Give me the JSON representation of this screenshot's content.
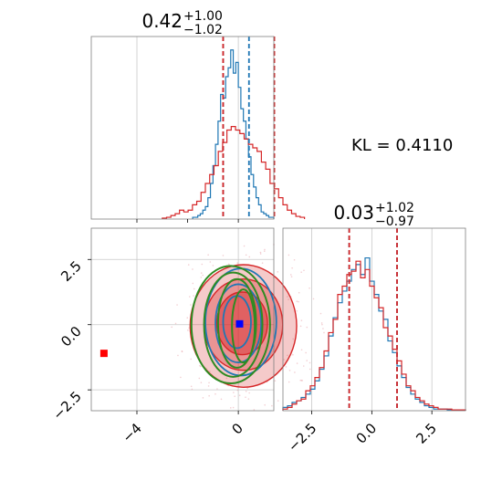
{
  "chart_data": {
    "type": "corner",
    "annotation": {
      "text": "KL = 0.4110"
    },
    "colors": {
      "blue": "#1f77b4",
      "red": "#d62728",
      "green": "#2e8b22",
      "marker_blue": "#0000ff",
      "marker_red": "#ff0000"
    },
    "panels": {
      "hist_x": {
        "type": "step-histogram",
        "title_main": "0.42",
        "title_sup": "+1.00",
        "title_sub": "−1.02",
        "xlim": [
          -5.8,
          1.4
        ],
        "ylim": [
          0,
          1.0
        ],
        "grid_x": [
          -4,
          0
        ],
        "series": [
          {
            "name": "",
            "color": "blue",
            "x0": -1.8,
            "bin_width": 0.1,
            "values": [
              0.01,
              0.01,
              0.02,
              0.03,
              0.05,
              0.07,
              0.12,
              0.2,
              0.3,
              0.42,
              0.55,
              0.7,
              0.68,
              0.8,
              0.85,
              0.95,
              0.82,
              0.88,
              0.74,
              0.62,
              0.55,
              0.45,
              0.35,
              0.25,
              0.18,
              0.12,
              0.08,
              0.04,
              0.03,
              0.02,
              0.01,
              0.01
            ]
          },
          {
            "name": "",
            "color": "red",
            "x0": -3.0,
            "bin_width": 0.17,
            "values": [
              0.005,
              0.01,
              0.02,
              0.03,
              0.05,
              0.04,
              0.05,
              0.08,
              0.1,
              0.15,
              0.2,
              0.25,
              0.3,
              0.38,
              0.43,
              0.5,
              0.52,
              0.5,
              0.48,
              0.45,
              0.42,
              0.4,
              0.38,
              0.32,
              0.28,
              0.2,
              0.17,
              0.12,
              0.08,
              0.05,
              0.03,
              0.015,
              0.01
            ]
          }
        ],
        "vlines": [
          {
            "x": -0.6,
            "color": "blue"
          },
          {
            "x": 0.42,
            "color": "blue"
          },
          {
            "x": -0.6,
            "color": "red"
          },
          {
            "x": 1.42,
            "color": "red"
          }
        ]
      },
      "hist_y": {
        "type": "step-histogram",
        "title_main": "0.03",
        "title_sup": "+1.02",
        "title_sub": "−0.97",
        "xlim": [
          -3.7,
          3.9
        ],
        "ylim": [
          0,
          1.0
        ],
        "xticks": [
          -2.5,
          0.0,
          2.5
        ],
        "xtick_labels": [
          "−2.5",
          "0.0",
          "2.5"
        ],
        "series": [
          {
            "name": "",
            "color": "blue",
            "x0": -3.7,
            "bin_width": 0.19,
            "values": [
              0.02,
              0.03,
              0.05,
              0.06,
              0.08,
              0.1,
              0.13,
              0.18,
              0.25,
              0.33,
              0.45,
              0.56,
              0.65,
              0.72,
              0.78,
              0.85,
              0.88,
              0.82,
              0.92,
              0.78,
              0.7,
              0.6,
              0.55,
              0.42,
              0.35,
              0.27,
              0.2,
              0.14,
              0.1,
              0.07,
              0.05,
              0.03,
              0.02,
              0.01,
              0.01,
              0.01,
              0.005,
              0.005,
              0.005,
              0.005
            ]
          },
          {
            "name": "",
            "color": "red",
            "x0": -3.7,
            "bin_width": 0.19,
            "values": [
              0.01,
              0.02,
              0.04,
              0.06,
              0.07,
              0.12,
              0.15,
              0.2,
              0.26,
              0.36,
              0.47,
              0.55,
              0.7,
              0.75,
              0.82,
              0.84,
              0.9,
              0.8,
              0.85,
              0.75,
              0.68,
              0.62,
              0.5,
              0.45,
              0.37,
              0.3,
              0.22,
              0.15,
              0.12,
              0.08,
              0.06,
              0.04,
              0.03,
              0.02,
              0.01,
              0.01,
              0.01,
              0.005,
              0.005,
              0.005
            ]
          }
        ],
        "vlines": [
          {
            "x": -0.94,
            "color": "blue"
          },
          {
            "x": 1.05,
            "color": "blue"
          },
          {
            "x": -0.94,
            "color": "red"
          },
          {
            "x": 1.05,
            "color": "red"
          }
        ]
      },
      "joint": {
        "type": "2d-contour",
        "xlim": [
          -5.8,
          1.4
        ],
        "ylim": [
          -3.3,
          3.7
        ],
        "xticks": [
          -4,
          0
        ],
        "xtick_labels": [
          "−4",
          "0"
        ],
        "yticks": [
          -2.5,
          0.0,
          2.5
        ],
        "ytick_labels": [
          "−2.5",
          "0.0",
          "2.5"
        ],
        "red_contours": [
          {
            "cx": 0.2,
            "cy": -0.05,
            "rx": 2.1,
            "ry": 2.35,
            "alpha": 0.45
          },
          {
            "cx": 0.2,
            "cy": 0.0,
            "rx": 1.55,
            "ry": 1.75,
            "alpha": 0.6
          },
          {
            "cx": 0.15,
            "cy": 0.05,
            "rx": 1.0,
            "ry": 1.2,
            "alpha": 0.85
          }
        ],
        "blue_contours": [
          {
            "cx": 0.1,
            "cy": 0.1,
            "rx": 1.4,
            "ry": 2.05
          },
          {
            "cx": 0.0,
            "cy": 0.05,
            "rx": 0.9,
            "ry": 1.5
          },
          {
            "cx": -0.05,
            "cy": 0.1,
            "rx": 0.55,
            "ry": 1.0
          }
        ],
        "green_contours": [
          {
            "cx": -0.3,
            "cy": 0.0,
            "rx": 1.55,
            "ry": 2.25
          },
          {
            "cx": -0.2,
            "cy": 0.0,
            "rx": 1.15,
            "ry": 2.0
          },
          {
            "cx": -0.05,
            "cy": 0.05,
            "rx": 0.75,
            "ry": 1.7
          },
          {
            "cx": 0.2,
            "cy": -0.05,
            "rx": 0.45,
            "ry": 1.4
          }
        ],
        "markers": [
          {
            "x": 0.05,
            "y": 0.03,
            "color": "marker_blue"
          },
          {
            "x": -5.3,
            "y": -1.1,
            "color": "marker_red"
          }
        ]
      }
    }
  }
}
